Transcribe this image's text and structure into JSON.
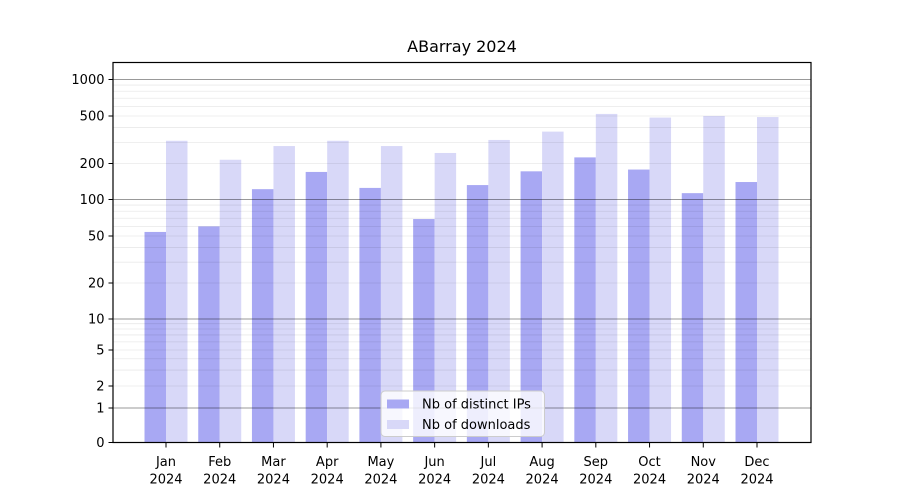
{
  "chart_data": {
    "type": "bar",
    "title": "ABarray 2024",
    "categories": [
      "Jan 2024",
      "Feb 2024",
      "Mar 2024",
      "Apr 2024",
      "May 2024",
      "Jun 2024",
      "Jul 2024",
      "Aug 2024",
      "Sep 2024",
      "Oct 2024",
      "Nov 2024",
      "Dec 2024"
    ],
    "x_months": [
      "Jan",
      "Feb",
      "Mar",
      "Apr",
      "May",
      "Jun",
      "Jul",
      "Aug",
      "Sep",
      "Oct",
      "Nov",
      "Dec"
    ],
    "x_year": "2024",
    "series": [
      {
        "name": "Nb of distinct IPs",
        "color": "#a8a8f3",
        "values": [
          54,
          60,
          122,
          170,
          125,
          69,
          132,
          172,
          225,
          178,
          113,
          140
        ]
      },
      {
        "name": "Nb of downloads",
        "color": "#d8d8f8",
        "values": [
          310,
          215,
          280,
          310,
          280,
          245,
          315,
          370,
          520,
          485,
          500,
          490
        ]
      }
    ],
    "y_axis": {
      "scale": "log-like (symlog/asinh)",
      "ticks": [
        0,
        1,
        2,
        5,
        10,
        20,
        50,
        100,
        200,
        500,
        1000
      ],
      "tick_labels": [
        "0",
        "1",
        "2",
        "5",
        "10",
        "20",
        "50",
        "100",
        "200",
        "500",
        "1000"
      ],
      "range": [
        0,
        1000
      ]
    },
    "legend": {
      "position": "lower center",
      "labels": [
        "Nb of distinct IPs",
        "Nb of downloads"
      ]
    },
    "grid": {
      "horizontal_major_at": [
        1,
        10,
        100,
        1000
      ],
      "horizontal_minor": "log decades 2-9",
      "vertical": "off"
    }
  },
  "colors": {
    "distinct_ips_bar": "#a8a8f3",
    "downloads_bar": "#d8d8f8",
    "axis_spine": "#000000",
    "legend_border": "#cccccc",
    "legend_background": "#ffffff",
    "background": "#ffffff"
  }
}
